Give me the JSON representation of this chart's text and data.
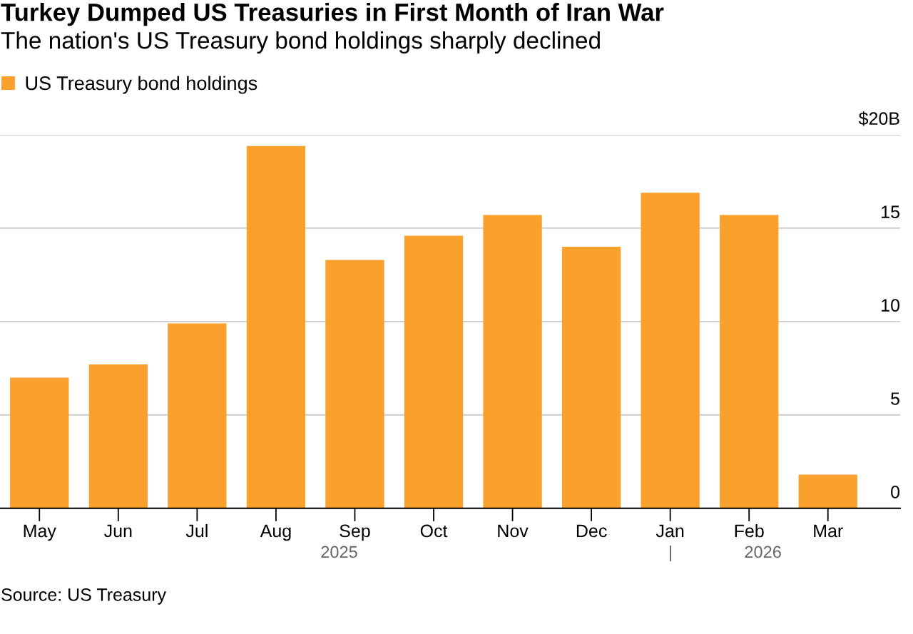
{
  "chart_data": {
    "type": "bar",
    "title": "Turkey Dumped US Treasuries in First Month of Iran War",
    "subtitle": "The nation's US Treasury bond holdings sharply declined",
    "categories": [
      "May",
      "Jun",
      "Jul",
      "Aug",
      "Sep",
      "Oct",
      "Nov",
      "Dec",
      "Jan",
      "Feb",
      "Mar"
    ],
    "series": [
      {
        "name": "US Treasury bond holdings",
        "color": "#f9a12c",
        "values": [
          7.0,
          7.7,
          9.9,
          19.4,
          13.3,
          14.6,
          15.7,
          14.0,
          16.9,
          15.7,
          1.8
        ]
      }
    ],
    "ylim": [
      0,
      20
    ],
    "yticks": [
      0,
      5,
      10,
      15,
      {
        "value": 20,
        "label": "$20B"
      }
    ],
    "grid": "y",
    "legend": "top left",
    "annotations": [
      "2025",
      "|",
      "2026",
      "Source: US Treasury"
    ]
  }
}
